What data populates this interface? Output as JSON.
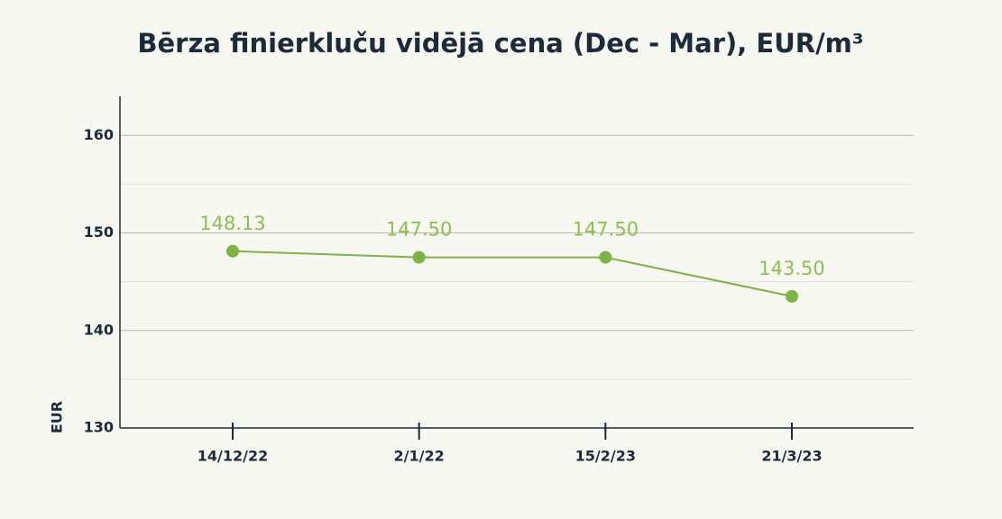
{
  "chart_data": {
    "type": "line",
    "title": "Bērza finierkluču vidējā cena (Dec - Mar), EUR/m³",
    "y_label": "EUR",
    "categories": [
      "14/12/22",
      "2/1/22",
      "15/2/23",
      "21/3/23"
    ],
    "series": [
      {
        "name": "EUR",
        "color": "#7cb342",
        "values": [
          148.13,
          147.5,
          147.5,
          143.5
        ],
        "value_labels": [
          "148.13",
          "147.50",
          "147.50",
          "143.50"
        ]
      }
    ],
    "ylim": [
      130,
      164
    ],
    "yticks": [
      130,
      140,
      150,
      160
    ],
    "minor_yticks": [
      135,
      145,
      155
    ],
    "grid": true
  }
}
